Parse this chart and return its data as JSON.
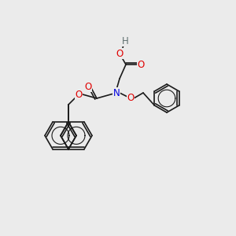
{
  "background_color": "#ebebeb",
  "bond_color": "#1a1a1a",
  "bond_width": 1.2,
  "atom_colors": {
    "O": "#e00000",
    "N": "#0000e0",
    "H": "#607070",
    "C": "#1a1a1a"
  },
  "font_size": 8.5
}
